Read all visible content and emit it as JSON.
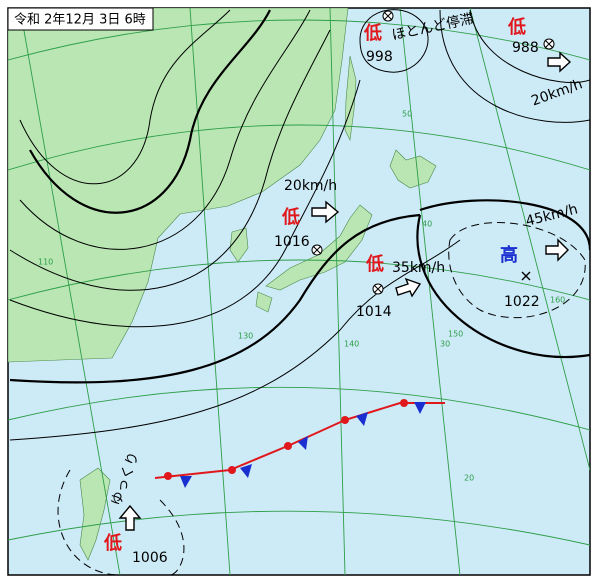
{
  "header": {
    "title": "令和 2年12月 3日 6時"
  },
  "systems": [
    {
      "kind": "低",
      "pressure": 998,
      "motion": "ほとんど停滞"
    },
    {
      "kind": "低",
      "pressure": 988,
      "speed": "20km/h"
    },
    {
      "kind": "低",
      "pressure": 1016,
      "speed": "20km/h"
    },
    {
      "kind": "低",
      "pressure": 1014,
      "speed": "35km/h"
    },
    {
      "kind": "高",
      "pressure": 1022,
      "speed": "45km/h"
    },
    {
      "kind": "低",
      "pressure": 1006,
      "motion": "ゆっくり"
    }
  ],
  "grid_labels": {
    "latitudes": [
      50,
      40,
      30,
      20
    ],
    "longitudes": [
      110,
      130,
      140,
      150,
      160
    ]
  }
}
